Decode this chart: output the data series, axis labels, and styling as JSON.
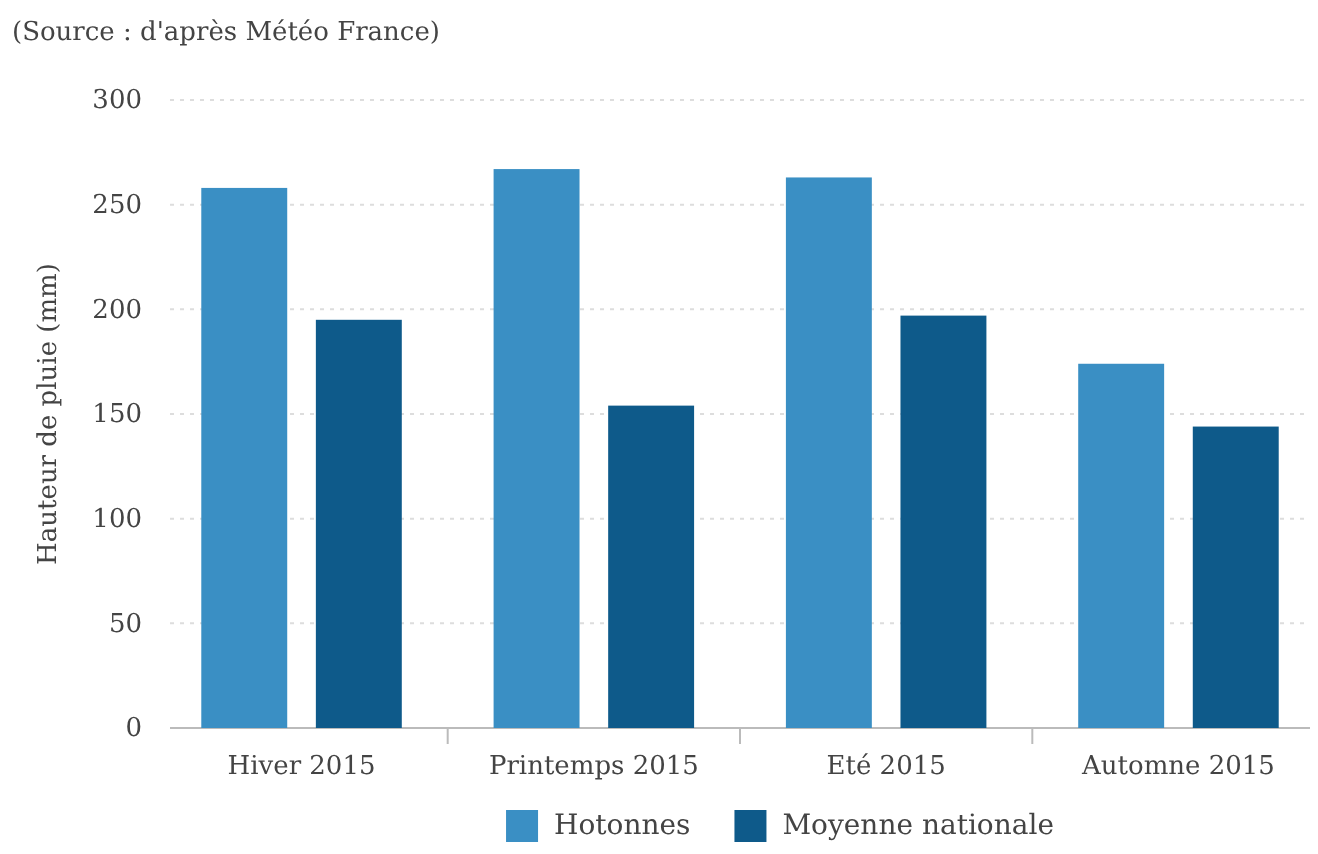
{
  "chart_data": {
    "type": "bar",
    "annotations": [
      "(Source : d'après Météo France)"
    ],
    "ylabel": "Hauteur de pluie (mm)",
    "categories": [
      "Hiver 2015",
      "Printemps 2015",
      "Eté 2015",
      "Automne 2015"
    ],
    "series": [
      {
        "name": "Hotonnes",
        "color": "#3a8fc4",
        "values": [
          258,
          267,
          263,
          174
        ]
      },
      {
        "name": "Moyenne nationale",
        "color": "#0e5a8a",
        "values": [
          195,
          154,
          197,
          144
        ]
      }
    ],
    "ylim": [
      0,
      300
    ],
    "yticks": [
      0,
      50,
      100,
      150,
      200,
      250,
      300
    ],
    "grid": "y",
    "legend": "bottom"
  }
}
